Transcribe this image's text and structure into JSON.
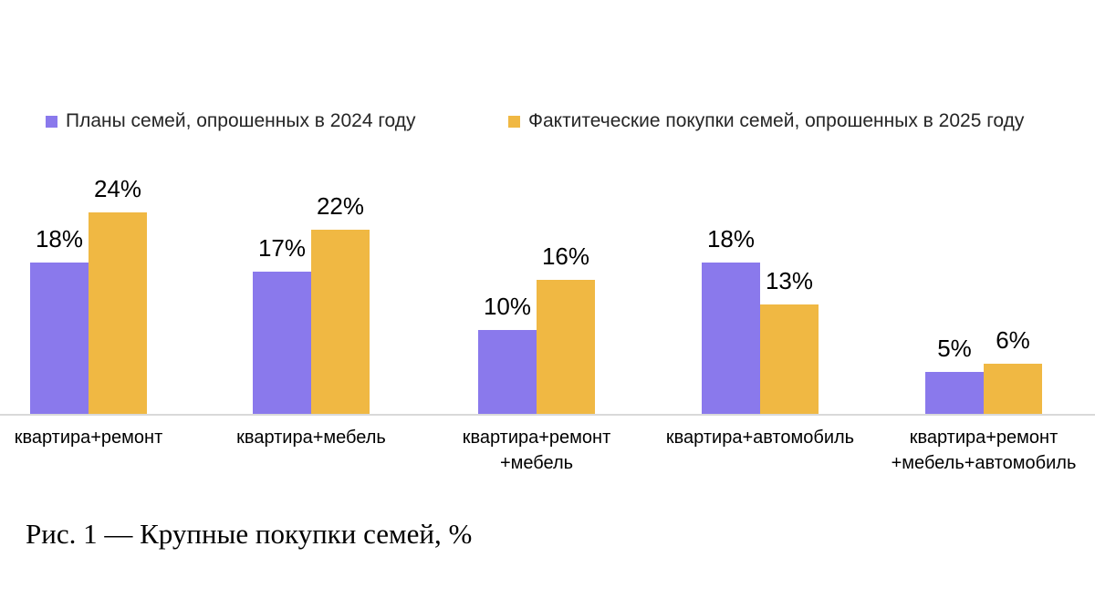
{
  "caption": "Рис. 1 — Крупные покупки семей, %",
  "axis_line_color": "#D9D9D9",
  "chart_data": {
    "type": "bar",
    "title": "",
    "xlabel": "",
    "ylabel": "",
    "value_suffix": "%",
    "ylim": [
      0,
      26
    ],
    "grid": false,
    "legend_position": "top",
    "categories": [
      "квартира+ремонт",
      "квартира+мебель",
      "квартира+ремонт\n+мебель",
      "квартира+автомобиль",
      "квартира+ремонт\n+мебель+автомобиль"
    ],
    "series": [
      {
        "name": "Планы семей, опрошенных в 2024 году",
        "color": "#8A79EC",
        "values": [
          18,
          17,
          10,
          18,
          5
        ]
      },
      {
        "name": "Фактитеческие покупки семей, опрошенных в 2025 году",
        "color": "#F0B843",
        "values": [
          24,
          22,
          16,
          13,
          6
        ]
      }
    ]
  }
}
